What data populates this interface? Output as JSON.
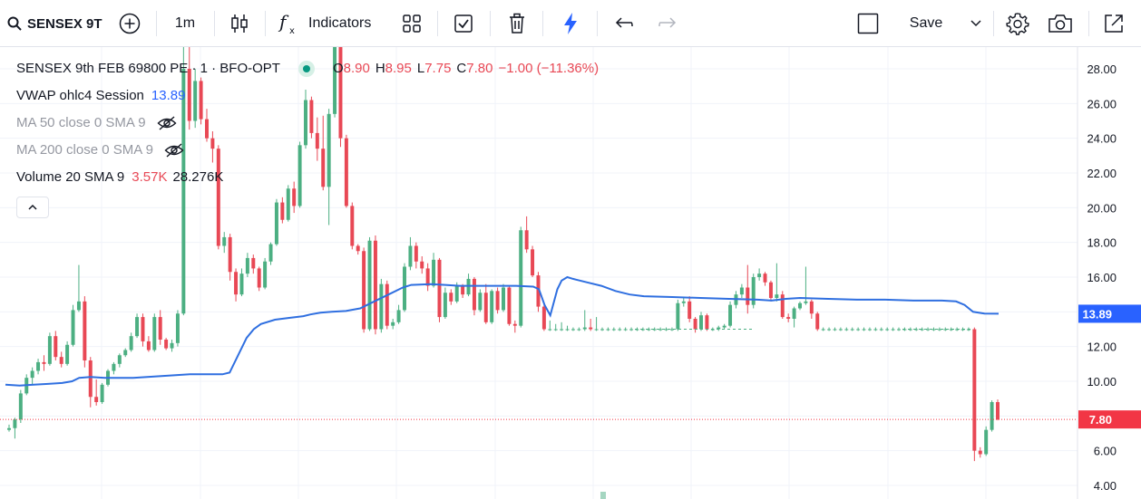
{
  "toolbar": {
    "symbol": "SENSEX 9T",
    "interval": "1m",
    "indicators_label": "Indicators",
    "save_label": "Save"
  },
  "legend": {
    "title": "SENSEX 9th FEB 69800 PE · 1 · BFO-OPT",
    "open_label": "O",
    "open": "8.90",
    "high_label": "H",
    "high": "8.95",
    "low_label": "L",
    "low": "7.75",
    "close_label": "C",
    "close": "7.80",
    "change": "−1.00 (−11.36%)",
    "vwap_label": "VWAP ohlc4 Session",
    "vwap_value": "13.89",
    "ma50_label": "MA 50 close 0 SMA 9",
    "ma200_label": "MA 200 close 0 SMA 9",
    "volume_label": "Volume 20 SMA 9",
    "volume_value1": "3.57K",
    "volume_value2": "28.276K"
  },
  "price_tags": {
    "vwap": "13.89",
    "last": "7.80"
  },
  "colors": {
    "up": "#4caf82",
    "down": "#e84855",
    "vwap": "#2f6fe0",
    "vwap_tag": "#2962ff",
    "last_tag": "#f23645",
    "grid": "#f0f3fa"
  },
  "chart_data": {
    "type": "candlestick",
    "y_ticks": [
      "4.00",
      "6.00",
      "8.00",
      "10.00",
      "12.00",
      "14.00",
      "16.00",
      "18.00",
      "20.00",
      "22.00",
      "24.00",
      "26.00",
      "28.00"
    ],
    "ylim": [
      3.5,
      29.5
    ],
    "grid": true,
    "candles": [
      [
        7.2,
        7.5,
        7.1,
        7.3
      ],
      [
        7.3,
        7.9,
        6.7,
        7.8
      ],
      [
        7.8,
        9.5,
        7.6,
        9.3
      ],
      [
        9.3,
        10.4,
        9.2,
        10.2
      ],
      [
        10.2,
        10.8,
        9.8,
        10.6
      ],
      [
        10.6,
        11.3,
        10.4,
        11.1
      ],
      [
        11.1,
        11.5,
        10.6,
        11.0
      ],
      [
        11.0,
        12.8,
        10.9,
        12.6
      ],
      [
        12.6,
        12.9,
        11.2,
        11.4
      ],
      [
        11.4,
        11.7,
        10.8,
        11.0
      ],
      [
        11.0,
        12.3,
        10.9,
        12.1
      ],
      [
        12.1,
        14.4,
        12.0,
        14.1
      ],
      [
        14.1,
        16.7,
        14.0,
        14.6
      ],
      [
        14.6,
        14.9,
        10.8,
        11.2
      ],
      [
        11.2,
        11.4,
        8.5,
        9.1
      ],
      [
        9.1,
        10.1,
        8.6,
        8.8
      ],
      [
        8.8,
        9.9,
        8.7,
        9.8
      ],
      [
        9.8,
        10.7,
        9.7,
        10.6
      ],
      [
        10.6,
        11.1,
        10.4,
        11.0
      ],
      [
        11.0,
        11.6,
        10.8,
        11.5
      ],
      [
        11.5,
        11.9,
        11.4,
        11.8
      ],
      [
        11.8,
        12.8,
        11.7,
        12.6
      ],
      [
        12.6,
        13.9,
        12.5,
        13.7
      ],
      [
        13.7,
        13.9,
        12.0,
        12.3
      ],
      [
        12.3,
        12.6,
        11.7,
        11.8
      ],
      [
        11.8,
        13.9,
        11.7,
        13.7
      ],
      [
        13.7,
        14.1,
        12.1,
        12.4
      ],
      [
        12.4,
        12.5,
        11.8,
        11.9
      ],
      [
        11.9,
        12.4,
        11.7,
        12.2
      ],
      [
        12.2,
        14.1,
        12.0,
        13.9
      ],
      [
        13.9,
        30.0,
        13.8,
        28.0
      ],
      [
        28.0,
        29.5,
        24.5,
        25.0
      ],
      [
        25.0,
        28.0,
        24.6,
        27.3
      ],
      [
        27.3,
        27.5,
        24.8,
        25.1
      ],
      [
        25.1,
        25.7,
        23.8,
        24.0
      ],
      [
        24.0,
        24.4,
        22.6,
        23.4
      ],
      [
        23.4,
        23.6,
        17.6,
        17.8
      ],
      [
        17.8,
        18.6,
        17.4,
        18.3
      ],
      [
        18.3,
        18.5,
        15.8,
        16.3
      ],
      [
        16.3,
        16.5,
        14.6,
        15.0
      ],
      [
        15.0,
        16.5,
        14.9,
        16.2
      ],
      [
        16.2,
        17.4,
        16.0,
        17.1
      ],
      [
        17.1,
        17.3,
        16.2,
        16.5
      ],
      [
        16.5,
        16.6,
        15.2,
        15.4
      ],
      [
        15.4,
        17.1,
        15.3,
        16.9
      ],
      [
        16.9,
        18.0,
        16.7,
        17.9
      ],
      [
        17.9,
        20.5,
        17.8,
        20.3
      ],
      [
        20.3,
        20.6,
        19.1,
        19.3
      ],
      [
        19.3,
        21.3,
        19.2,
        21.1
      ],
      [
        21.1,
        21.5,
        19.7,
        20.1
      ],
      [
        20.1,
        23.8,
        20.0,
        23.6
      ],
      [
        23.6,
        26.8,
        23.4,
        26.2
      ],
      [
        26.2,
        26.4,
        24.0,
        24.3
      ],
      [
        24.3,
        25.2,
        22.7,
        23.4
      ],
      [
        23.4,
        25.3,
        21.0,
        21.2
      ],
      [
        21.2,
        25.7,
        19.0,
        25.4
      ],
      [
        25.4,
        29.8,
        25.2,
        29.5
      ],
      [
        29.5,
        29.8,
        23.5,
        24.0
      ],
      [
        24.0,
        24.2,
        20.0,
        20.1
      ],
      [
        20.1,
        20.3,
        17.6,
        17.8
      ],
      [
        17.8,
        17.9,
        17.3,
        17.5
      ],
      [
        17.5,
        17.7,
        12.8,
        13.0
      ],
      [
        13.0,
        18.3,
        12.9,
        18.1
      ],
      [
        18.1,
        18.4,
        12.7,
        13.0
      ],
      [
        13.0,
        15.9,
        12.8,
        15.6
      ],
      [
        15.6,
        15.8,
        13.0,
        13.2
      ],
      [
        13.2,
        13.6,
        13.0,
        13.4
      ],
      [
        13.4,
        14.4,
        13.3,
        14.1
      ],
      [
        14.1,
        16.8,
        14.0,
        16.6
      ],
      [
        16.6,
        18.3,
        16.4,
        17.8
      ],
      [
        17.8,
        18.0,
        16.5,
        16.9
      ],
      [
        16.9,
        17.2,
        16.2,
        16.5
      ],
      [
        16.5,
        16.8,
        15.2,
        15.5
      ],
      [
        15.5,
        17.4,
        15.4,
        17.0
      ],
      [
        17.0,
        17.1,
        13.4,
        13.7
      ],
      [
        13.7,
        15.4,
        13.6,
        15.1
      ],
      [
        15.1,
        15.3,
        14.4,
        14.6
      ],
      [
        14.6,
        15.7,
        14.5,
        15.5
      ],
      [
        15.5,
        15.6,
        14.8,
        15.0
      ],
      [
        15.0,
        16.2,
        14.9,
        15.9
      ],
      [
        15.9,
        16.0,
        13.8,
        14.1
      ],
      [
        14.1,
        15.3,
        14.0,
        15.1
      ],
      [
        15.1,
        15.6,
        13.3,
        13.4
      ],
      [
        13.4,
        15.3,
        13.3,
        15.2
      ],
      [
        15.2,
        15.4,
        13.9,
        14.1
      ],
      [
        14.1,
        15.6,
        14.0,
        15.4
      ],
      [
        15.4,
        15.5,
        13.2,
        13.3
      ],
      [
        13.3,
        13.5,
        12.8,
        13.2
      ],
      [
        13.2,
        18.9,
        13.1,
        18.7
      ],
      [
        18.7,
        19.5,
        17.4,
        17.6
      ],
      [
        17.6,
        17.8,
        16.0,
        16.1
      ],
      [
        16.1,
        16.3,
        14.0,
        14.3
      ],
      [
        14.3,
        14.5,
        12.9,
        13.0
      ],
      [
        13.0,
        13.5,
        12.9,
        13.0
      ],
      [
        13.0,
        13.3,
        12.9,
        13.0
      ],
      [
        13.0,
        13.4,
        12.9,
        13.0
      ],
      [
        13.0,
        13.2,
        12.9,
        13.0
      ],
      [
        13.0,
        13.1,
        12.9,
        13.0
      ],
      [
        13.0,
        13.1,
        12.9,
        13.0
      ],
      [
        13.0,
        14.1,
        12.9,
        13.1
      ],
      [
        13.1,
        13.6,
        12.9,
        13.0
      ],
      [
        13.0,
        13.7,
        12.9,
        13.0
      ],
      [
        13.0,
        13.1,
        12.9,
        13.0
      ],
      [
        13.0,
        13.1,
        12.9,
        13.0
      ],
      [
        13.0,
        13.1,
        12.9,
        13.0
      ],
      [
        13.0,
        13.1,
        12.9,
        13.0
      ],
      [
        13.0,
        13.1,
        12.9,
        13.0
      ],
      [
        13.0,
        13.1,
        12.9,
        13.0
      ],
      [
        13.0,
        13.1,
        12.9,
        13.0
      ],
      [
        13.0,
        13.1,
        12.9,
        13.0
      ],
      [
        13.0,
        13.1,
        12.9,
        13.0
      ],
      [
        13.0,
        13.1,
        12.9,
        13.0
      ],
      [
        13.0,
        13.1,
        12.9,
        13.0
      ],
      [
        13.0,
        13.1,
        12.9,
        13.0
      ],
      [
        13.0,
        13.1,
        12.9,
        13.0
      ],
      [
        13.0,
        14.7,
        12.9,
        14.5
      ],
      [
        14.5,
        14.8,
        14.3,
        14.6
      ],
      [
        14.6,
        14.9,
        13.4,
        13.6
      ],
      [
        13.6,
        13.7,
        12.8,
        13.0
      ],
      [
        13.0,
        14.0,
        12.9,
        13.8
      ],
      [
        13.8,
        13.9,
        12.9,
        13.0
      ],
      [
        13.0,
        13.1,
        12.9,
        13.0
      ],
      [
        13.0,
        13.2,
        12.9,
        13.1
      ],
      [
        13.1,
        13.3,
        13.0,
        13.2
      ],
      [
        13.2,
        14.6,
        13.1,
        14.4
      ],
      [
        14.4,
        15.2,
        14.2,
        15.0
      ],
      [
        15.0,
        15.6,
        14.8,
        15.4
      ],
      [
        15.4,
        16.7,
        13.9,
        14.4
      ],
      [
        14.4,
        16.2,
        14.2,
        16.0
      ],
      [
        16.0,
        16.5,
        15.8,
        16.2
      ],
      [
        16.2,
        16.3,
        15.5,
        15.7
      ],
      [
        15.7,
        15.8,
        14.6,
        14.8
      ],
      [
        14.8,
        16.8,
        14.6,
        15.0
      ],
      [
        15.0,
        15.2,
        13.6,
        13.7
      ],
      [
        13.7,
        13.9,
        13.4,
        13.6
      ],
      [
        13.6,
        14.3,
        13.1,
        14.2
      ],
      [
        14.2,
        14.6,
        14.1,
        14.5
      ],
      [
        14.5,
        16.6,
        14.4,
        14.6
      ],
      [
        14.6,
        14.7,
        13.6,
        13.9
      ],
      [
        13.9,
        14.0,
        12.9,
        13.0
      ],
      [
        13.0,
        13.1,
        12.9,
        13.0
      ],
      [
        13.0,
        13.1,
        12.9,
        13.0
      ],
      [
        13.0,
        13.1,
        12.9,
        13.0
      ],
      [
        13.0,
        13.1,
        12.9,
        13.0
      ],
      [
        13.0,
        13.1,
        12.9,
        13.0
      ],
      [
        13.0,
        13.1,
        12.9,
        13.0
      ],
      [
        13.0,
        13.1,
        12.9,
        13.0
      ],
      [
        13.0,
        13.1,
        12.9,
        13.0
      ],
      [
        13.0,
        13.1,
        12.9,
        13.0
      ],
      [
        13.0,
        13.1,
        12.9,
        13.0
      ],
      [
        13.0,
        13.1,
        12.9,
        13.0
      ],
      [
        13.0,
        13.1,
        12.9,
        13.0
      ],
      [
        13.0,
        13.1,
        12.9,
        13.0
      ],
      [
        13.0,
        13.1,
        12.9,
        13.0
      ],
      [
        13.0,
        13.1,
        12.9,
        13.0
      ],
      [
        13.0,
        13.1,
        12.9,
        13.0
      ],
      [
        13.0,
        13.1,
        12.9,
        13.0
      ],
      [
        13.0,
        13.1,
        12.9,
        13.0
      ],
      [
        13.0,
        13.1,
        12.9,
        13.0
      ],
      [
        13.0,
        13.1,
        12.9,
        13.0
      ],
      [
        13.0,
        13.1,
        12.9,
        13.0
      ],
      [
        13.0,
        13.1,
        12.9,
        13.0
      ],
      [
        13.0,
        13.1,
        12.9,
        13.0
      ],
      [
        13.0,
        13.1,
        12.9,
        13.0
      ],
      [
        13.0,
        13.1,
        12.9,
        13.0
      ],
      [
        13.0,
        13.1,
        12.9,
        13.0
      ],
      [
        13.0,
        13.1,
        5.4,
        6.0
      ],
      [
        6.0,
        6.2,
        5.6,
        5.8
      ],
      [
        5.8,
        7.4,
        5.7,
        7.2
      ],
      [
        7.2,
        8.9,
        7.1,
        8.8
      ],
      [
        8.8,
        8.95,
        7.75,
        7.8
      ]
    ],
    "vwap": [
      [
        0,
        9.8
      ],
      [
        10,
        9.75
      ],
      [
        20,
        9.8
      ],
      [
        30,
        9.85
      ],
      [
        40,
        9.9
      ],
      [
        47,
        10.0
      ],
      [
        52,
        10.2
      ],
      [
        60,
        10.25
      ],
      [
        70,
        10.2
      ],
      [
        80,
        10.2
      ],
      [
        90,
        10.2
      ],
      [
        100,
        10.25
      ],
      [
        110,
        10.3
      ],
      [
        120,
        10.35
      ],
      [
        130,
        10.4
      ],
      [
        140,
        10.4
      ],
      [
        147,
        10.4
      ],
      [
        153,
        10.4
      ],
      [
        158,
        10.5
      ],
      [
        164,
        11.5
      ],
      [
        170,
        12.5
      ],
      [
        175,
        13.0
      ],
      [
        180,
        13.3
      ],
      [
        190,
        13.55
      ],
      [
        200,
        13.65
      ],
      [
        210,
        13.75
      ],
      [
        215,
        13.85
      ],
      [
        222,
        13.95
      ],
      [
        230,
        14.0
      ],
      [
        240,
        14.05
      ],
      [
        250,
        14.2
      ],
      [
        260,
        14.6
      ],
      [
        270,
        15.0
      ],
      [
        280,
        15.4
      ],
      [
        286,
        15.55
      ],
      [
        300,
        15.6
      ],
      [
        310,
        15.55
      ],
      [
        320,
        15.5
      ],
      [
        330,
        15.5
      ],
      [
        345,
        15.5
      ],
      [
        360,
        15.5
      ],
      [
        372,
        15.45
      ],
      [
        376,
        15.3
      ],
      [
        380,
        14.4
      ],
      [
        384,
        13.8
      ],
      [
        386,
        14.4
      ],
      [
        389,
        15.3
      ],
      [
        392,
        15.8
      ],
      [
        396,
        16.0
      ],
      [
        400,
        15.9
      ],
      [
        410,
        15.7
      ],
      [
        420,
        15.5
      ],
      [
        430,
        15.2
      ],
      [
        440,
        15.0
      ],
      [
        450,
        14.9
      ],
      [
        470,
        14.85
      ],
      [
        490,
        14.8
      ],
      [
        510,
        14.75
      ],
      [
        530,
        14.7
      ],
      [
        540,
        14.65
      ],
      [
        550,
        14.75
      ],
      [
        560,
        14.8
      ],
      [
        580,
        14.75
      ],
      [
        600,
        14.7
      ],
      [
        620,
        14.7
      ],
      [
        640,
        14.65
      ],
      [
        660,
        14.65
      ],
      [
        670,
        14.6
      ],
      [
        676,
        14.4
      ],
      [
        682,
        14.0
      ],
      [
        690,
        13.9
      ],
      [
        700,
        13.89
      ]
    ],
    "x_range": [
      0,
      700
    ],
    "last_price": 7.8,
    "vwap_last": 13.89
  }
}
